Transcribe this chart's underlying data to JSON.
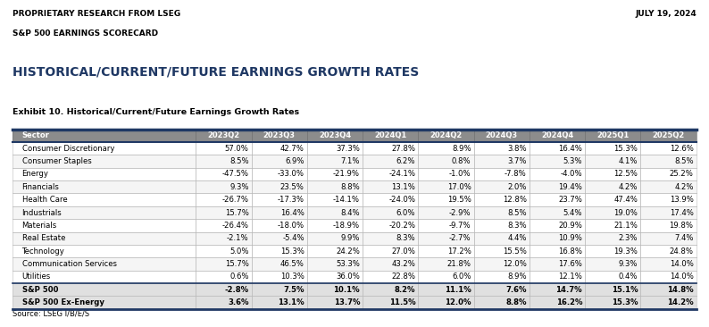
{
  "header_left1": "PROPRIETARY RESEARCH FROM LSEG",
  "header_left2": "S&P 500 EARNINGS SCORECARD",
  "header_right": "JULY 19, 2024",
  "title": "HISTORICAL/CURRENT/FUTURE EARNINGS GROWTH RATES",
  "subtitle": "Exhibit 10. Historical/Current/Future Earnings Growth Rates",
  "source": "Source: LSEG I/B/E/S",
  "columns": [
    "Sector",
    "2023Q2",
    "2023Q3",
    "2023Q4",
    "2024Q1",
    "2024Q2",
    "2024Q3",
    "2024Q4",
    "2025Q1",
    "2025Q2"
  ],
  "rows": [
    [
      "Consumer Discretionary",
      "57.0%",
      "42.7%",
      "37.3%",
      "27.8%",
      "8.9%",
      "3.8%",
      "16.4%",
      "15.3%",
      "12.6%"
    ],
    [
      "Consumer Staples",
      "8.5%",
      "6.9%",
      "7.1%",
      "6.2%",
      "0.8%",
      "3.7%",
      "5.3%",
      "4.1%",
      "8.5%"
    ],
    [
      "Energy",
      "-47.5%",
      "-33.0%",
      "-21.9%",
      "-24.1%",
      "-1.0%",
      "-7.8%",
      "-4.0%",
      "12.5%",
      "25.2%"
    ],
    [
      "Financials",
      "9.3%",
      "23.5%",
      "8.8%",
      "13.1%",
      "17.0%",
      "2.0%",
      "19.4%",
      "4.2%",
      "4.2%"
    ],
    [
      "Health Care",
      "-26.7%",
      "-17.3%",
      "-14.1%",
      "-24.0%",
      "19.5%",
      "12.8%",
      "23.7%",
      "47.4%",
      "13.9%"
    ],
    [
      "Industrials",
      "15.7%",
      "16.4%",
      "8.4%",
      "6.0%",
      "-2.9%",
      "8.5%",
      "5.4%",
      "19.0%",
      "17.4%"
    ],
    [
      "Materials",
      "-26.4%",
      "-18.0%",
      "-18.9%",
      "-20.2%",
      "-9.7%",
      "8.3%",
      "20.9%",
      "21.1%",
      "19.8%"
    ],
    [
      "Real Estate",
      "-2.1%",
      "-5.4%",
      "9.9%",
      "8.3%",
      "-2.7%",
      "4.4%",
      "10.9%",
      "2.3%",
      "7.4%"
    ],
    [
      "Technology",
      "5.0%",
      "15.3%",
      "24.2%",
      "27.0%",
      "17.2%",
      "15.5%",
      "16.8%",
      "19.3%",
      "24.8%"
    ],
    [
      "Communication Services",
      "15.7%",
      "46.5%",
      "53.3%",
      "43.2%",
      "21.8%",
      "12.0%",
      "17.6%",
      "9.3%",
      "14.0%"
    ],
    [
      "Utilities",
      "0.6%",
      "10.3%",
      "36.0%",
      "22.8%",
      "6.0%",
      "8.9%",
      "12.1%",
      "0.4%",
      "14.0%"
    ]
  ],
  "bold_rows": [
    [
      "S&P 500",
      "-2.8%",
      "7.5%",
      "10.1%",
      "8.2%",
      "11.1%",
      "7.6%",
      "14.7%",
      "15.1%",
      "14.8%"
    ],
    [
      "S&P 500 Ex-Energy",
      "3.6%",
      "13.1%",
      "13.7%",
      "11.5%",
      "12.0%",
      "8.8%",
      "16.2%",
      "15.3%",
      "14.2%"
    ]
  ],
  "header_bg": "#8c8c8c",
  "header_fg": "#ffffff",
  "row_bg_odd": "#ffffff",
  "row_bg_even": "#f0f0f0",
  "bold_row_bg": "#e8e8e8",
  "border_color_dark": "#1f3864",
  "border_color_light": "#cccccc",
  "text_color": "#000000",
  "title_color": "#1f3864",
  "header_text_color": "#000000"
}
